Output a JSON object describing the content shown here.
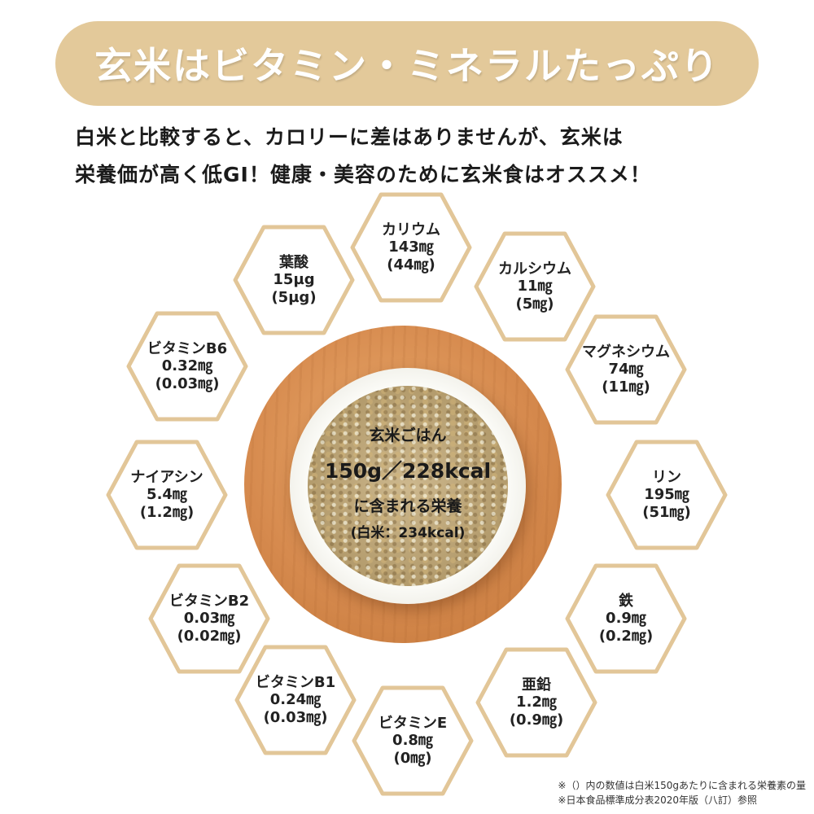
{
  "title": "玄米はビタミン・ミネラルたっぷり",
  "intro": {
    "line1": "白米と比較すると、カロリーに差はありませんが、玄米は",
    "line2": "栄養価が高く低GI！健康・美容のために玄米食はオススメ！"
  },
  "center": {
    "line1": "玄米ごはん",
    "line2": "150g／228kcal",
    "line3": "に含まれる栄養",
    "line4": "(白米：234kcal)"
  },
  "nutrients": [
    {
      "name": "カリウム",
      "value": "143㎎",
      "white_rice": "(44㎎)"
    },
    {
      "name": "カルシウム",
      "value": "11㎎",
      "white_rice": "(5㎎)"
    },
    {
      "name": "マグネシウム",
      "value": "74㎎",
      "white_rice": "(11㎎)"
    },
    {
      "name": "リン",
      "value": "195㎎",
      "white_rice": "(51㎎)"
    },
    {
      "name": "鉄",
      "value": "0.9㎎",
      "white_rice": "(0.2㎎)"
    },
    {
      "name": "亜鉛",
      "value": "1.2㎎",
      "white_rice": "(0.9㎎)"
    },
    {
      "name": "ビタミンE",
      "value": "0.8㎎",
      "white_rice": "(0㎎)"
    },
    {
      "name": "ビタミンB1",
      "value": "0.24㎎",
      "white_rice": "(0.03㎎)"
    },
    {
      "name": "ビタミンB2",
      "value": "0.03㎎",
      "white_rice": "(0.02㎎)"
    },
    {
      "name": "ナイアシン",
      "value": "5.4㎎",
      "white_rice": "(1.2㎎)"
    },
    {
      "name": "ビタミンB6",
      "value": "0.32㎎",
      "white_rice": "(0.03㎎)"
    },
    {
      "name": "葉酸",
      "value": "15µg",
      "white_rice": "(5µg)"
    }
  ],
  "notes": {
    "note1": "※（）内の数値は白米150gあたりに含まれる栄養素の量",
    "note2": "※日本食品標準成分表2020年版（八訂）参照"
  },
  "colors": {
    "banner": "#e3c99a",
    "hex_border": "#e2c698",
    "text": "#222222"
  }
}
